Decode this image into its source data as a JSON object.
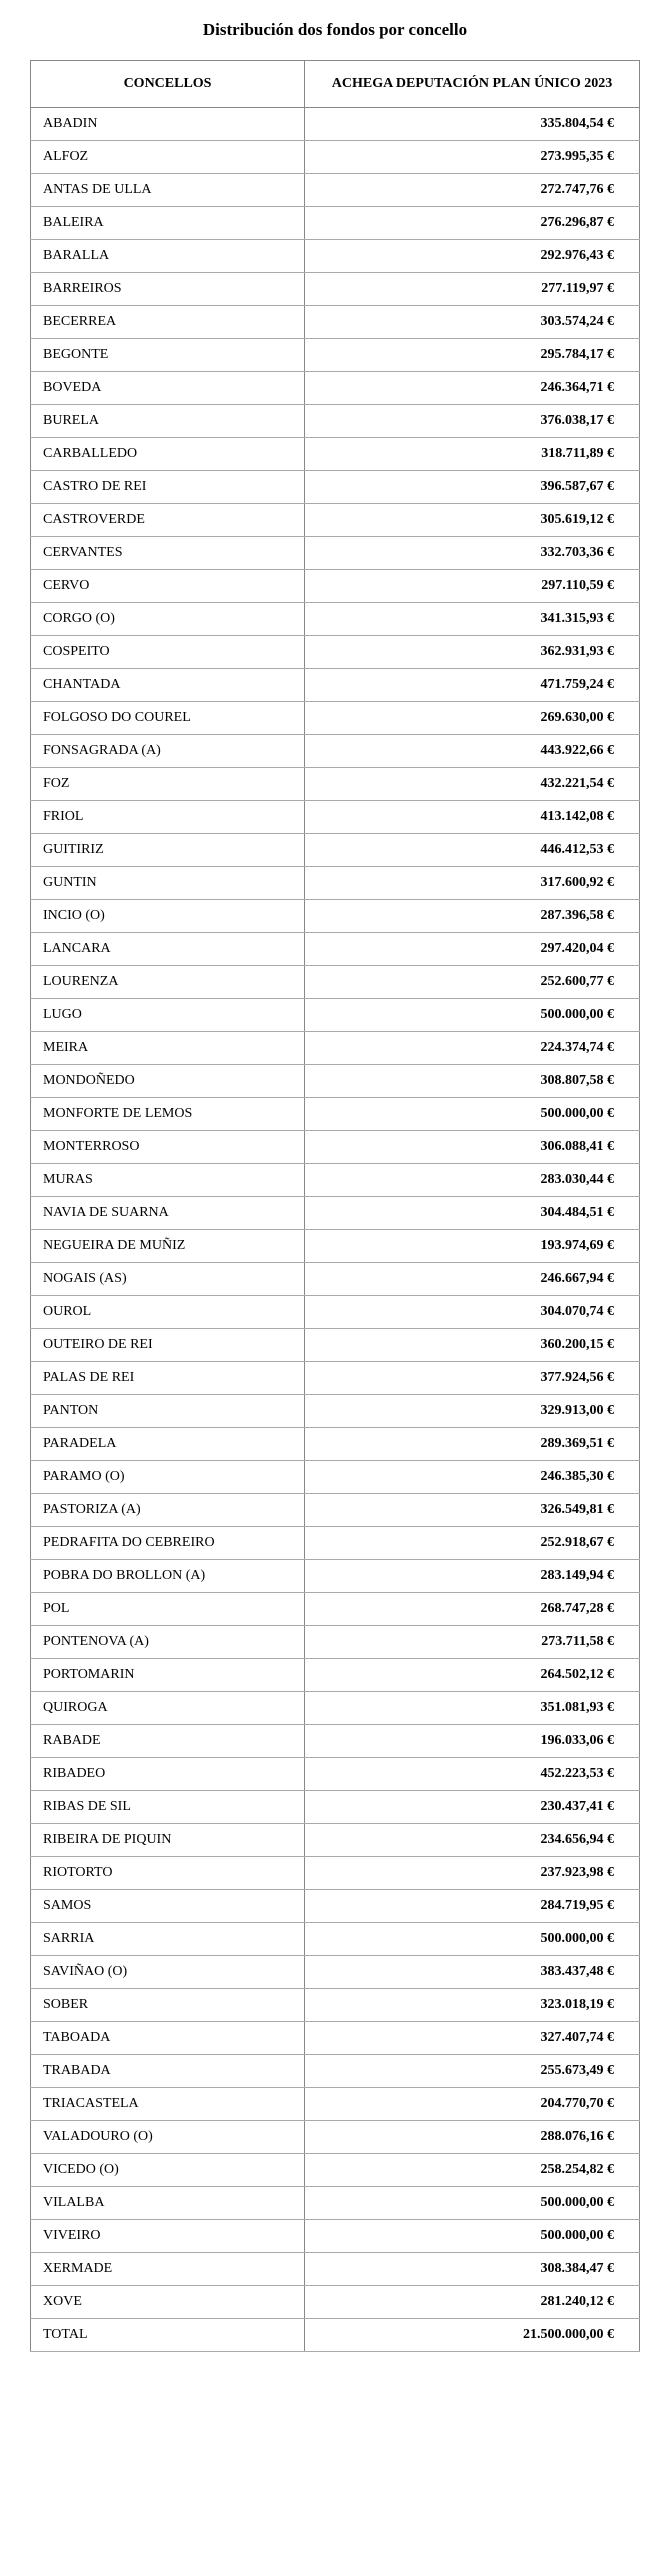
{
  "title": "Distribución dos fondos por concello",
  "table": {
    "headers": {
      "col1": "CONCELLOS",
      "col2": "ACHEGA DEPUTACIÓN PLAN ÚNICO 2023"
    },
    "rows": [
      {
        "concello": "ABADIN",
        "valor": "335.804,54 €"
      },
      {
        "concello": "ALFOZ",
        "valor": "273.995,35 €"
      },
      {
        "concello": "ANTAS DE ULLA",
        "valor": "272.747,76 €"
      },
      {
        "concello": "BALEIRA",
        "valor": "276.296,87 €"
      },
      {
        "concello": "BARALLA",
        "valor": "292.976,43 €"
      },
      {
        "concello": "BARREIROS",
        "valor": "277.119,97 €"
      },
      {
        "concello": "BECERREA",
        "valor": "303.574,24 €"
      },
      {
        "concello": "BEGONTE",
        "valor": "295.784,17 €"
      },
      {
        "concello": "BOVEDA",
        "valor": "246.364,71 €"
      },
      {
        "concello": "BURELA",
        "valor": "376.038,17 €"
      },
      {
        "concello": "CARBALLEDO",
        "valor": "318.711,89 €"
      },
      {
        "concello": "CASTRO DE REI",
        "valor": "396.587,67 €"
      },
      {
        "concello": "CASTROVERDE",
        "valor": "305.619,12 €"
      },
      {
        "concello": "CERVANTES",
        "valor": "332.703,36 €"
      },
      {
        "concello": "CERVO",
        "valor": "297.110,59 €"
      },
      {
        "concello": "CORGO (O)",
        "valor": "341.315,93 €"
      },
      {
        "concello": "COSPEITO",
        "valor": "362.931,93 €"
      },
      {
        "concello": "CHANTADA",
        "valor": "471.759,24 €"
      },
      {
        "concello": "FOLGOSO DO COUREL",
        "valor": "269.630,00 €"
      },
      {
        "concello": "FONSAGRADA (A)",
        "valor": "443.922,66 €"
      },
      {
        "concello": "FOZ",
        "valor": "432.221,54 €"
      },
      {
        "concello": "FRIOL",
        "valor": "413.142,08 €"
      },
      {
        "concello": "GUITIRIZ",
        "valor": "446.412,53 €"
      },
      {
        "concello": "GUNTIN",
        "valor": "317.600,92 €"
      },
      {
        "concello": "INCIO (O)",
        "valor": "287.396,58 €"
      },
      {
        "concello": "LANCARA",
        "valor": "297.420,04 €"
      },
      {
        "concello": "LOURENZA",
        "valor": "252.600,77 €"
      },
      {
        "concello": "LUGO",
        "valor": "500.000,00 €"
      },
      {
        "concello": "MEIRA",
        "valor": "224.374,74 €"
      },
      {
        "concello": "MONDOÑEDO",
        "valor": "308.807,58 €"
      },
      {
        "concello": "MONFORTE DE LEMOS",
        "valor": "500.000,00 €"
      },
      {
        "concello": "MONTERROSO",
        "valor": "306.088,41 €"
      },
      {
        "concello": "MURAS",
        "valor": "283.030,44 €"
      },
      {
        "concello": "NAVIA DE SUARNA",
        "valor": "304.484,51 €"
      },
      {
        "concello": "NEGUEIRA DE MUÑIZ",
        "valor": "193.974,69 €"
      },
      {
        "concello": "NOGAIS (AS)",
        "valor": "246.667,94 €"
      },
      {
        "concello": "OUROL",
        "valor": "304.070,74 €"
      },
      {
        "concello": "OUTEIRO DE REI",
        "valor": "360.200,15 €"
      },
      {
        "concello": "PALAS DE REI",
        "valor": "377.924,56 €"
      },
      {
        "concello": "PANTON",
        "valor": "329.913,00 €"
      },
      {
        "concello": "PARADELA",
        "valor": "289.369,51 €"
      },
      {
        "concello": "PARAMO (O)",
        "valor": "246.385,30 €"
      },
      {
        "concello": "PASTORIZA (A)",
        "valor": "326.549,81 €"
      },
      {
        "concello": "PEDRAFITA DO CEBREIRO",
        "valor": "252.918,67 €"
      },
      {
        "concello": "POBRA DO BROLLON (A)",
        "valor": "283.149,94 €"
      },
      {
        "concello": "POL",
        "valor": "268.747,28 €"
      },
      {
        "concello": "PONTENOVA (A)",
        "valor": "273.711,58 €"
      },
      {
        "concello": "PORTOMARIN",
        "valor": "264.502,12 €"
      },
      {
        "concello": "QUIROGA",
        "valor": "351.081,93 €"
      },
      {
        "concello": "RABADE",
        "valor": "196.033,06 €"
      },
      {
        "concello": "RIBADEO",
        "valor": "452.223,53 €"
      },
      {
        "concello": "RIBAS DE SIL",
        "valor": "230.437,41 €"
      },
      {
        "concello": "RIBEIRA DE PIQUIN",
        "valor": "234.656,94 €"
      },
      {
        "concello": "RIOTORTO",
        "valor": "237.923,98 €"
      },
      {
        "concello": "SAMOS",
        "valor": "284.719,95 €"
      },
      {
        "concello": "SARRIA",
        "valor": "500.000,00 €"
      },
      {
        "concello": "SAVIÑAO (O)",
        "valor": "383.437,48 €"
      },
      {
        "concello": "SOBER",
        "valor": "323.018,19 €"
      },
      {
        "concello": "TABOADA",
        "valor": "327.407,74 €"
      },
      {
        "concello": "TRABADA",
        "valor": "255.673,49 €"
      },
      {
        "concello": "TRIACASTELA",
        "valor": "204.770,70 €"
      },
      {
        "concello": "VALADOURO (O)",
        "valor": "288.076,16 €"
      },
      {
        "concello": "VICEDO (O)",
        "valor": "258.254,82 €"
      },
      {
        "concello": "VILALBA",
        "valor": "500.000,00 €"
      },
      {
        "concello": "VIVEIRO",
        "valor": "500.000,00 €"
      },
      {
        "concello": "XERMADE",
        "valor": "308.384,47 €"
      },
      {
        "concello": "XOVE",
        "valor": "281.240,12 €"
      }
    ],
    "total": {
      "label": "TOTAL",
      "valor": "21.500.000,00 €"
    }
  }
}
